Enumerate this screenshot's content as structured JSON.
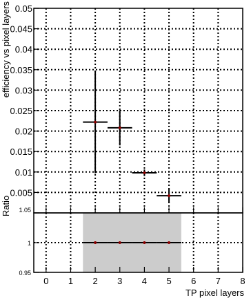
{
  "chart_data": {
    "type": "scatter",
    "top_panel": {
      "ylabel": "efficiency vs pixel layers",
      "ylim": [
        0,
        0.05
      ],
      "yticks": [
        "0.05",
        "0.045",
        "0.04",
        "0.035",
        "0.03",
        "0.025",
        "0.02",
        "0.015",
        "0.01",
        "0.005"
      ],
      "points": [
        {
          "x": 2,
          "y": 0.0222,
          "xerr": 0.5,
          "yerr": 0.0125
        },
        {
          "x": 3,
          "y": 0.0208,
          "xerr": 0.5,
          "yerr": 0.0043
        },
        {
          "x": 4,
          "y": 0.0098,
          "xerr": 0.5,
          "yerr": 0.0008
        },
        {
          "x": 5,
          "y": 0.0042,
          "xerr": 0.5,
          "yerr": 0.0018
        }
      ]
    },
    "ratio_panel": {
      "ylabel": "Ratio",
      "ylim": [
        0.95,
        1.05
      ],
      "yticks": [
        "1.05",
        "1",
        "0.95"
      ],
      "band": {
        "x": [
          1.5,
          5.5
        ],
        "y": [
          0.95,
          1.05
        ],
        "color": "#cccccc"
      },
      "points": [
        {
          "x": 2,
          "y": 1,
          "xerr": 0.5
        },
        {
          "x": 3,
          "y": 1,
          "xerr": 0.5
        },
        {
          "x": 4,
          "y": 1,
          "xerr": 0.5
        },
        {
          "x": 5,
          "y": 1,
          "xerr": 0.5
        }
      ]
    },
    "xlabel": "TP pixel layers",
    "xlim": [
      -0.5,
      8
    ],
    "xticks": [
      "0",
      "1",
      "2",
      "3",
      "4",
      "5",
      "6",
      "7",
      "8"
    ],
    "grid": true,
    "marker_color": "#8b0000"
  }
}
